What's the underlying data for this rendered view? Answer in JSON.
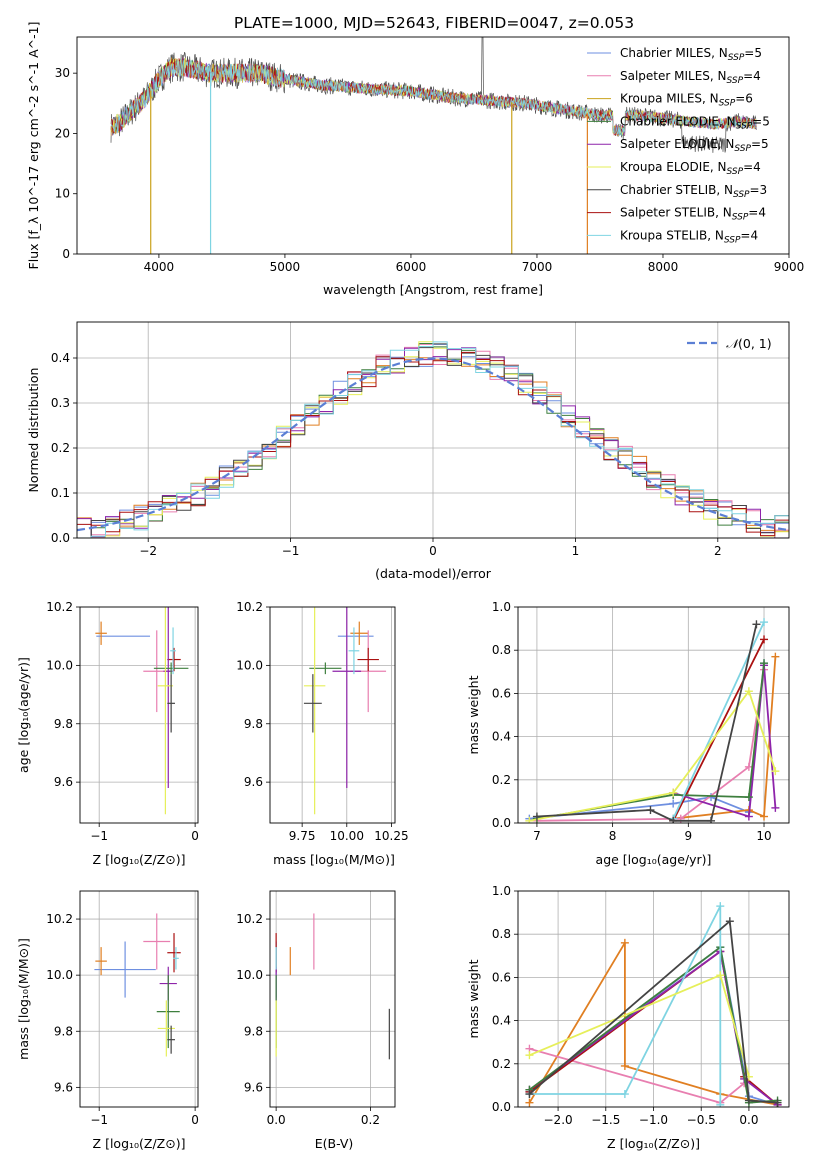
{
  "figure_title": "PLATE=1000, MJD=52643, FIBERID=0047, z=0.053",
  "model_colors": {
    "Chabrier MILES": "#6e8fe0",
    "Salpeter MILES": "#e87fb0",
    "Kroupa MILES": "#c9a21c",
    "Chabrier ELODIE": "#3e7f3e",
    "Salpeter ELODIE": "#8e24aa",
    "Kroupa ELODIE": "#e6ef5a",
    "Chabrier STELIB": "#444444",
    "Salpeter STELIB": "#aa1111",
    "Kroupa STELIB": "#7fd4e2",
    "orange_series": "#e07f22",
    "normal_curve": "#5b7fd4"
  },
  "chart_data": [
    {
      "id": "spectrum",
      "type": "line",
      "title": "PLATE=1000, MJD=52643, FIBERID=0047, z=0.053",
      "xlabel": "wavelength [Angstrom, rest frame]",
      "ylabel": "Flux [f_λ 10^-17 erg cm^-2 s^-1 A^-1]",
      "xlim": [
        3350,
        9000
      ],
      "ylim": [
        0,
        36
      ],
      "xticks": [
        4000,
        5000,
        6000,
        7000,
        8000,
        9000
      ],
      "yticks": [
        0,
        10,
        20,
        30
      ],
      "legend_placement": "upper-right",
      "legend": [
        {
          "label": "Chabrier MILES, N",
          "sub": "SSP",
          "suffix": "=5"
        },
        {
          "label": "Salpeter MILES, N",
          "sub": "SSP",
          "suffix": "=4"
        },
        {
          "label": "Kroupa MILES, N",
          "sub": "SSP",
          "suffix": "=6"
        },
        {
          "label": "Chabrier ELODIE, N",
          "sub": "SSP",
          "suffix": "=5"
        },
        {
          "label": "Salpeter ELODIE, N",
          "sub": "SSP",
          "suffix": "=5"
        },
        {
          "label": "Kroupa ELODIE, N",
          "sub": "SSP",
          "suffix": "=4"
        },
        {
          "label": "Chabrier STELIB, N",
          "sub": "SSP",
          "suffix": "=3"
        },
        {
          "label": "Salpeter STELIB, N",
          "sub": "SSP",
          "suffix": "=4"
        },
        {
          "label": "Kroupa STELIB, N",
          "sub": "SSP",
          "suffix": "=4"
        }
      ],
      "continuum": [
        [
          3620,
          21
        ],
        [
          3700,
          22
        ],
        [
          3800,
          24
        ],
        [
          3900,
          26
        ],
        [
          4000,
          29
        ],
        [
          4100,
          31
        ],
        [
          4200,
          31
        ],
        [
          4400,
          30
        ],
        [
          4600,
          30
        ],
        [
          4800,
          30
        ],
        [
          5000,
          29
        ],
        [
          5300,
          28
        ],
        [
          5600,
          27.5
        ],
        [
          6000,
          27
        ],
        [
          6300,
          26
        ],
        [
          6600,
          25.5
        ],
        [
          6900,
          25
        ],
        [
          7200,
          24
        ],
        [
          7500,
          23
        ],
        [
          7800,
          23
        ],
        [
          8000,
          22.5
        ],
        [
          8200,
          22
        ],
        [
          8400,
          21.5
        ],
        [
          8600,
          22
        ],
        [
          8740,
          21.5
        ]
      ],
      "dips": [
        [
          3935,
          0
        ],
        [
          4410,
          0
        ],
        [
          6800,
          0
        ],
        [
          7400,
          0
        ]
      ]
    },
    {
      "id": "residual_hist",
      "type": "line",
      "xlabel": "(data-model)/error",
      "ylabel": "Normed distribution",
      "xlim": [
        -2.5,
        2.5
      ],
      "ylim": [
        0,
        0.48
      ],
      "xticks": [
        -2,
        -1,
        0,
        1,
        2
      ],
      "yticks": [
        0,
        0.1,
        0.2,
        0.3,
        0.4
      ],
      "grid": true,
      "legend_placement": "upper-right",
      "normal_legend": "N(0,1)",
      "bin_width": 0.1,
      "bin_start": -2.5
    },
    {
      "id": "age_vs_Z",
      "type": "scatter",
      "xlabel": "Z [log10(Z/Z⊙)]",
      "ylabel": "age [log10(age/yr)]",
      "xlim": [
        -1.2,
        0.03
      ],
      "ylim": [
        9.46,
        10.2
      ],
      "xticks": [
        -1,
        0
      ],
      "xticklabels": [
        "−1",
        "0"
      ],
      "yticks": [
        9.6,
        9.8,
        10.0,
        10.2
      ],
      "grid": true
    },
    {
      "id": "age_vs_mass",
      "type": "scatter",
      "xlabel": "mass [log10(M/M⊙)]",
      "xlim": [
        9.57,
        10.27
      ],
      "ylim": [
        9.46,
        10.2
      ],
      "xticks": [
        9.75,
        10.0,
        10.25
      ],
      "xticklabels": [
        "9.75",
        "10.00",
        "10.25"
      ],
      "yticks": [
        9.6,
        9.8,
        10.0,
        10.2
      ],
      "grid": true
    },
    {
      "id": "massweight_vs_age",
      "type": "line",
      "xlabel": "age [log10(age/yr)]",
      "ylabel": "mass weight",
      "xlim": [
        6.75,
        10.33
      ],
      "ylim": [
        0,
        1.0
      ],
      "xticks": [
        7,
        8,
        9,
        10
      ],
      "yticks": [
        0,
        0.2,
        0.4,
        0.6,
        0.8,
        1.0
      ],
      "grid": true
    },
    {
      "id": "mass_vs_Z",
      "type": "scatter",
      "xlabel": "Z [log10(Z/Z⊙)]",
      "ylabel": "mass [log10(M/M⊙)]",
      "xlim": [
        -1.2,
        0.03
      ],
      "ylim": [
        9.53,
        10.3
      ],
      "xticks": [
        -1,
        0
      ],
      "xticklabels": [
        "−1",
        "0"
      ],
      "yticks": [
        9.6,
        9.8,
        10.0,
        10.2
      ],
      "grid": true
    },
    {
      "id": "mass_vs_ebv",
      "type": "scatter",
      "xlabel": "E(B-V)",
      "xlim": [
        -0.013,
        0.252
      ],
      "ylim": [
        9.53,
        10.3
      ],
      "xticks": [
        0.0,
        0.2
      ],
      "xticklabels": [
        "0.0",
        "0.2"
      ],
      "yticks": [
        9.6,
        9.8,
        10.0,
        10.2
      ],
      "grid": true
    },
    {
      "id": "massweight_vs_Z",
      "type": "line",
      "xlabel": "Z [log10(Z/Z⊙)]",
      "ylabel": "mass weight",
      "xlim": [
        -2.42,
        0.42
      ],
      "ylim": [
        0,
        1.0
      ],
      "xticks": [
        -2.0,
        -1.5,
        -1.0,
        -0.5,
        0.0
      ],
      "xticklabels": [
        "−2.0",
        "−1.5",
        "−1.0",
        "−0.5",
        "0.0"
      ],
      "yticks": [
        0,
        0.2,
        0.4,
        0.6,
        0.8,
        1.0
      ],
      "grid": true
    }
  ],
  "scatter_points": {
    "age_vs_Z": [
      {
        "c": "#6e8fe0",
        "x": -0.75,
        "y": 10.1,
        "xerr": 0.28,
        "yerr": 0.0
      },
      {
        "c": "#e07f22",
        "x": -0.98,
        "y": 10.11,
        "xerr": 0.06,
        "yerr": 0.04
      },
      {
        "c": "#e87fb0",
        "x": -0.4,
        "y": 9.98,
        "xerr": 0.14,
        "yerr": 0.14
      },
      {
        "c": "#aa1111",
        "x": -0.22,
        "y": 10.02,
        "xerr": 0.07,
        "yerr": 0.04
      },
      {
        "c": "#8e24aa",
        "x": -0.28,
        "y": 9.98,
        "xerr": 0.05,
        "yerr": 0.4
      },
      {
        "c": "#3e7f3e",
        "x": -0.25,
        "y": 9.99,
        "xerr": 0.18,
        "yerr": 0.02
      },
      {
        "c": "#7fd4e2",
        "x": -0.23,
        "y": 10.05,
        "xerr": 0.03,
        "yerr": 0.08
      },
      {
        "c": "#e6ef5a",
        "x": -0.31,
        "y": 9.93,
        "xerr": 0.08,
        "yerr": 0.44
      },
      {
        "c": "#444444",
        "x": -0.25,
        "y": 9.87,
        "xerr": 0.04,
        "yerr": 0.1
      }
    ],
    "age_vs_mass": [
      {
        "c": "#6e8fe0",
        "x": 10.05,
        "y": 10.1,
        "xerr": 0.1,
        "yerr": 0.0
      },
      {
        "c": "#e07f22",
        "x": 10.07,
        "y": 10.11,
        "xerr": 0.05,
        "yerr": 0.04
      },
      {
        "c": "#e87fb0",
        "x": 10.12,
        "y": 9.98,
        "xerr": 0.1,
        "yerr": 0.14
      },
      {
        "c": "#aa1111",
        "x": 10.12,
        "y": 10.02,
        "xerr": 0.06,
        "yerr": 0.04
      },
      {
        "c": "#8e24aa",
        "x": 10.0,
        "y": 9.98,
        "xerr": 0.08,
        "yerr": 0.4
      },
      {
        "c": "#3e7f3e",
        "x": 9.88,
        "y": 9.99,
        "xerr": 0.09,
        "yerr": 0.02
      },
      {
        "c": "#7fd4e2",
        "x": 10.04,
        "y": 10.05,
        "xerr": 0.03,
        "yerr": 0.08
      },
      {
        "c": "#e6ef5a",
        "x": 9.82,
        "y": 9.93,
        "xerr": 0.06,
        "yerr": 0.44
      },
      {
        "c": "#444444",
        "x": 9.81,
        "y": 9.87,
        "xerr": 0.05,
        "yerr": 0.1
      }
    ],
    "mass_vs_Z": [
      {
        "c": "#6e8fe0",
        "x": -0.73,
        "y": 10.02,
        "xerr": 0.32,
        "yerr": 0.1
      },
      {
        "c": "#e07f22",
        "x": -0.98,
        "y": 10.05,
        "xerr": 0.06,
        "yerr": 0.05
      },
      {
        "c": "#e87fb0",
        "x": -0.4,
        "y": 10.12,
        "xerr": 0.14,
        "yerr": 0.1
      },
      {
        "c": "#aa1111",
        "x": -0.22,
        "y": 10.08,
        "xerr": 0.07,
        "yerr": 0.07
      },
      {
        "c": "#8e24aa",
        "x": -0.28,
        "y": 9.97,
        "xerr": 0.09,
        "yerr": 0.06
      },
      {
        "c": "#3e7f3e",
        "x": -0.28,
        "y": 9.87,
        "xerr": 0.12,
        "yerr": 0.13
      },
      {
        "c": "#7fd4e2",
        "x": -0.2,
        "y": 10.06,
        "xerr": 0.03,
        "yerr": 0.04
      },
      {
        "c": "#e6ef5a",
        "x": -0.3,
        "y": 9.81,
        "xerr": 0.09,
        "yerr": 0.1
      },
      {
        "c": "#444444",
        "x": -0.25,
        "y": 9.77,
        "xerr": 0.04,
        "yerr": 0.05
      }
    ],
    "mass_vs_ebv": [
      {
        "c": "#6e8fe0",
        "x": 0.0,
        "y": 10.02,
        "xerr": 0.0,
        "yerr": 0.1
      },
      {
        "c": "#e07f22",
        "x": 0.03,
        "y": 10.05,
        "xerr": 0.0,
        "yerr": 0.05
      },
      {
        "c": "#e87fb0",
        "x": 0.08,
        "y": 10.12,
        "xerr": 0.0,
        "yerr": 0.1
      },
      {
        "c": "#aa1111",
        "x": 0.0,
        "y": 10.08,
        "xerr": 0.0,
        "yerr": 0.07
      },
      {
        "c": "#8e24aa",
        "x": 0.0,
        "y": 9.97,
        "xerr": 0.0,
        "yerr": 0.06
      },
      {
        "c": "#3e7f3e",
        "x": 0.0,
        "y": 9.87,
        "xerr": 0.0,
        "yerr": 0.13
      },
      {
        "c": "#7fd4e2",
        "x": 0.0,
        "y": 10.06,
        "xerr": 0.0,
        "yerr": 0.04
      },
      {
        "c": "#e6ef5a",
        "x": 0.0,
        "y": 9.81,
        "xerr": 0.0,
        "yerr": 0.1
      },
      {
        "c": "#444444",
        "x": 0.24,
        "y": 9.79,
        "xerr": 0.0,
        "yerr": 0.09
      }
    ]
  },
  "weight_lines": {
    "massweight_vs_age": [
      {
        "c": "#6e8fe0",
        "pts": [
          [
            6.9,
            0.02
          ],
          [
            8.8,
            0.09
          ],
          [
            9.3,
            0.12
          ],
          [
            9.8,
            0.05
          ],
          [
            10.0,
            0.74
          ]
        ]
      },
      {
        "c": "#e07f22",
        "pts": [
          [
            8.8,
            0.02
          ],
          [
            9.8,
            0.06
          ],
          [
            10.0,
            0.03
          ],
          [
            10.15,
            0.77
          ]
        ]
      },
      {
        "c": "#e87fb0",
        "pts": [
          [
            7.0,
            0.01
          ],
          [
            8.9,
            0.02
          ],
          [
            9.8,
            0.26
          ],
          [
            10.0,
            0.71
          ]
        ]
      },
      {
        "c": "#aa1111",
        "pts": [
          [
            8.8,
            0.01
          ],
          [
            10.0,
            0.85
          ]
        ]
      },
      {
        "c": "#8e24aa",
        "pts": [
          [
            8.8,
            0.14
          ],
          [
            9.8,
            0.03
          ],
          [
            10.0,
            0.73
          ],
          [
            10.15,
            0.07
          ]
        ]
      },
      {
        "c": "#3e7f3e",
        "pts": [
          [
            7.0,
            0.02
          ],
          [
            8.8,
            0.13
          ],
          [
            9.8,
            0.12
          ],
          [
            10.0,
            0.74
          ]
        ]
      },
      {
        "c": "#7fd4e2",
        "pts": [
          [
            8.8,
            0.02
          ],
          [
            10.0,
            0.93
          ]
        ]
      },
      {
        "c": "#e6ef5a",
        "pts": [
          [
            6.9,
            0.01
          ],
          [
            8.8,
            0.14
          ],
          [
            9.8,
            0.61
          ],
          [
            10.15,
            0.24
          ]
        ]
      },
      {
        "c": "#444444",
        "pts": [
          [
            7.0,
            0.03
          ],
          [
            8.5,
            0.06
          ],
          [
            8.8,
            0.01
          ],
          [
            9.3,
            0.01
          ],
          [
            9.9,
            0.92
          ]
        ]
      }
    ],
    "massweight_vs_Z": [
      {
        "c": "#6e8fe0",
        "pts": [
          [
            -2.3,
            0.07
          ],
          [
            -0.3,
            0.74
          ],
          [
            0.0,
            0.05
          ],
          [
            0.3,
            0.01
          ]
        ]
      },
      {
        "c": "#e07f22",
        "pts": [
          [
            -2.3,
            0.02
          ],
          [
            -1.3,
            0.76
          ],
          [
            -1.3,
            0.19
          ],
          [
            -0.3,
            0.06
          ],
          [
            0.3,
            0.01
          ]
        ]
      },
      {
        "c": "#e87fb0",
        "pts": [
          [
            -2.3,
            0.27
          ],
          [
            -0.3,
            0.02
          ],
          [
            -0.05,
            0.11
          ]
        ]
      },
      {
        "c": "#aa1111",
        "pts": [
          [
            -2.3,
            0.07
          ],
          [
            -0.3,
            0.72
          ],
          [
            -0.05,
            0.14
          ],
          [
            0.3,
            0.01
          ]
        ]
      },
      {
        "c": "#8e24aa",
        "pts": [
          [
            -2.3,
            0.08
          ],
          [
            -0.3,
            0.72
          ],
          [
            -0.05,
            0.13
          ],
          [
            0.3,
            0.01
          ]
        ]
      },
      {
        "c": "#3e7f3e",
        "pts": [
          [
            -2.3,
            0.08
          ],
          [
            -0.3,
            0.74
          ],
          [
            0.0,
            0.02
          ],
          [
            0.3,
            0.03
          ]
        ]
      },
      {
        "c": "#7fd4e2",
        "pts": [
          [
            -2.3,
            0.06
          ],
          [
            -1.3,
            0.06
          ],
          [
            -0.3,
            0.93
          ],
          [
            -0.3,
            0.01
          ]
        ]
      },
      {
        "c": "#e6ef5a",
        "pts": [
          [
            -2.3,
            0.24
          ],
          [
            -0.3,
            0.61
          ],
          [
            0.0,
            0.14
          ]
        ]
      },
      {
        "c": "#444444",
        "pts": [
          [
            -2.3,
            0.06
          ],
          [
            -0.2,
            0.86
          ],
          [
            0.0,
            0.03
          ],
          [
            0.3,
            0.02
          ]
        ]
      }
    ]
  }
}
